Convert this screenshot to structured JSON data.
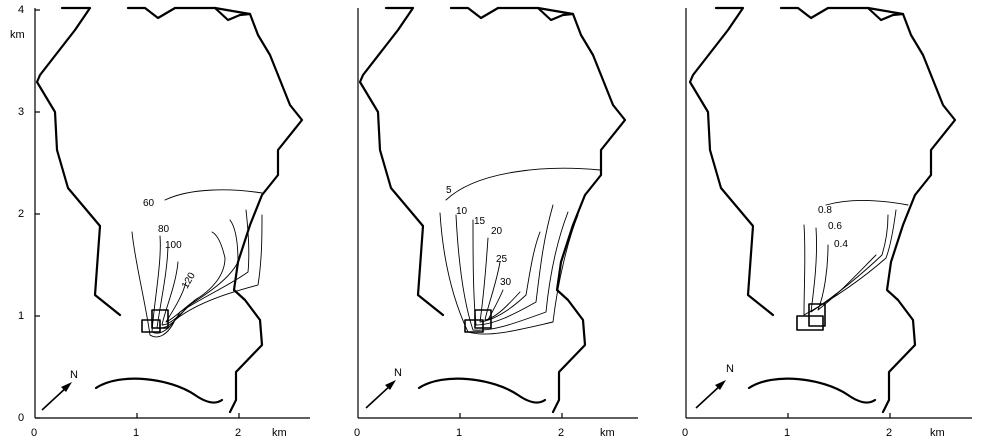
{
  "panels": [
    {
      "y_ticks": [
        "0",
        "1",
        "2",
        "3",
        "4"
      ],
      "y_unit": "km",
      "x_ticks": [
        "0",
        "1",
        "2"
      ],
      "x_unit": "km",
      "north_label": "N",
      "contour_labels": [
        "60",
        "80",
        "100",
        "120"
      ]
    },
    {
      "x_ticks": [
        "0",
        "1",
        "2"
      ],
      "x_unit": "km",
      "north_label": "N",
      "contour_labels": [
        "5",
        "10",
        "15",
        "20",
        "25",
        "30"
      ]
    },
    {
      "x_ticks": [
        "0",
        "1",
        "2"
      ],
      "x_unit": "km",
      "north_label": "N",
      "contour_labels": [
        "0.8",
        "0.6",
        "0.4"
      ]
    }
  ]
}
